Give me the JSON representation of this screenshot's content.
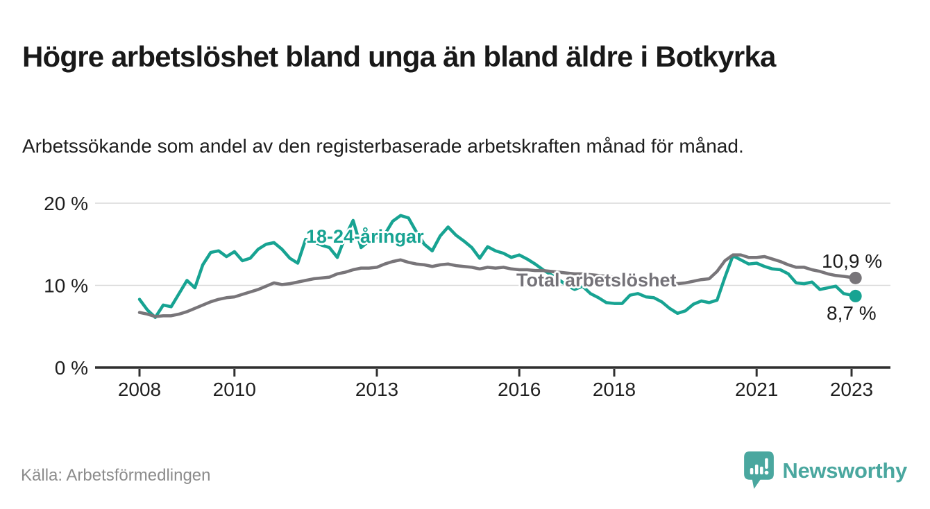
{
  "header": {
    "title": "Högre arbetslöshet bland unga än bland äldre i Botkyrka",
    "subtitle": "Arbetssökande som andel av den registerbaserade arbetskraften månad för månad."
  },
  "footer": {
    "source": "Källa: Arbetsförmedlingen",
    "logo_text": "Newsworthy"
  },
  "colors": {
    "youth": "#17a392",
    "total": "#787579",
    "gridline": "#d9d9d9",
    "axis": "#2f2f2f",
    "axis_text": "#1f1f1f",
    "logo_teal": "#4aa79f"
  },
  "chart_data": {
    "type": "line",
    "title": "Högre arbetslöshet bland unga än bland äldre i Botkyrka",
    "subtitle": "Arbetssökande som andel av den registerbaserade arbetskraften månad för månad.",
    "unit": "%",
    "grid": true,
    "legend_position": "inline-labels",
    "ylim": [
      0,
      20
    ],
    "xlim": [
      2007.0,
      2023.85
    ],
    "y_ticks": [
      {
        "label": "0 %",
        "value": 0
      },
      {
        "label": "10 %",
        "value": 10
      },
      {
        "label": "20 %",
        "value": 20
      }
    ],
    "x_ticks": [
      {
        "label": "2008",
        "value": 2008
      },
      {
        "label": "2010",
        "value": 2010
      },
      {
        "label": "2013",
        "value": 2013
      },
      {
        "label": "2016",
        "value": 2016
      },
      {
        "label": "2018",
        "value": 2018
      },
      {
        "label": "2021",
        "value": 2021
      },
      {
        "label": "2023",
        "value": 2023
      }
    ],
    "x": [
      2008,
      2008.167,
      2008.333,
      2008.5,
      2008.667,
      2008.833,
      2009,
      2009.167,
      2009.333,
      2009.5,
      2009.667,
      2009.833,
      2010,
      2010.167,
      2010.333,
      2010.5,
      2010.667,
      2010.833,
      2011,
      2011.167,
      2011.333,
      2011.5,
      2011.667,
      2011.833,
      2012,
      2012.167,
      2012.333,
      2012.5,
      2012.667,
      2012.833,
      2013,
      2013.167,
      2013.333,
      2013.5,
      2013.667,
      2013.833,
      2014,
      2014.167,
      2014.333,
      2014.5,
      2014.667,
      2014.833,
      2015,
      2015.167,
      2015.333,
      2015.5,
      2015.667,
      2015.833,
      2016,
      2016.167,
      2016.333,
      2016.5,
      2016.667,
      2016.833,
      2017,
      2017.167,
      2017.333,
      2017.5,
      2017.667,
      2017.833,
      2018,
      2018.167,
      2018.333,
      2018.5,
      2018.667,
      2018.833,
      2019,
      2019.167,
      2019.333,
      2019.5,
      2019.667,
      2019.833,
      2020,
      2020.167,
      2020.333,
      2020.5,
      2020.667,
      2020.833,
      2021,
      2021.167,
      2021.333,
      2021.5,
      2021.667,
      2021.833,
      2022,
      2022.167,
      2022.333,
      2022.5,
      2022.667,
      2022.833,
      2023.083
    ],
    "series": [
      {
        "id": "youth",
        "name": "18-24-åringar",
        "color": "#17a392",
        "end_label": "8,7 %",
        "end_value": 8.7,
        "values": [
          8.3,
          7.0,
          6.1,
          7.6,
          7.4,
          9.0,
          10.6,
          9.7,
          12.5,
          14.0,
          14.2,
          13.5,
          14.1,
          13.0,
          13.3,
          14.4,
          15.0,
          15.2,
          14.4,
          13.3,
          12.7,
          15.6,
          15.3,
          14.9,
          14.6,
          13.4,
          15.9,
          17.9,
          14.6,
          15.4,
          15.8,
          16.2,
          17.8,
          18.5,
          18.2,
          16.5,
          15.0,
          14.2,
          16.0,
          17.1,
          16.1,
          15.4,
          14.6,
          13.3,
          14.7,
          14.2,
          13.9,
          13.4,
          13.7,
          13.2,
          12.6,
          11.9,
          11.3,
          10.7,
          10.0,
          9.5,
          9.9,
          9.0,
          8.5,
          7.9,
          7.8,
          7.8,
          8.8,
          9.0,
          8.6,
          8.5,
          8.0,
          7.2,
          6.6,
          6.9,
          7.7,
          8.1,
          7.9,
          8.2,
          11.0,
          13.6,
          13.1,
          12.6,
          12.7,
          12.3,
          12.0,
          11.9,
          11.4,
          10.3,
          10.2,
          10.4,
          9.5,
          9.7,
          9.9,
          9.0,
          8.7
        ]
      },
      {
        "id": "total",
        "name": "Total arbetslöshet",
        "color": "#787579",
        "end_label": "10,9 %",
        "end_value": 10.9,
        "values": [
          6.7,
          6.5,
          6.2,
          6.3,
          6.3,
          6.5,
          6.8,
          7.2,
          7.6,
          8.0,
          8.3,
          8.5,
          8.6,
          8.9,
          9.2,
          9.5,
          9.9,
          10.3,
          10.1,
          10.2,
          10.4,
          10.6,
          10.8,
          10.9,
          11.0,
          11.4,
          11.6,
          11.9,
          12.1,
          12.1,
          12.2,
          12.6,
          12.9,
          13.1,
          12.8,
          12.6,
          12.5,
          12.3,
          12.5,
          12.6,
          12.4,
          12.3,
          12.2,
          12.0,
          12.2,
          12.1,
          12.2,
          12.0,
          11.9,
          11.9,
          11.8,
          11.8,
          11.7,
          11.6,
          11.5,
          11.4,
          11.4,
          11.3,
          11.2,
          11.1,
          11.0,
          10.9,
          10.9,
          10.8,
          10.7,
          10.6,
          10.4,
          10.3,
          10.2,
          10.3,
          10.5,
          10.7,
          10.8,
          11.7,
          13.0,
          13.7,
          13.7,
          13.4,
          13.4,
          13.5,
          13.2,
          12.9,
          12.5,
          12.2,
          12.2,
          11.9,
          11.7,
          11.4,
          11.2,
          11.1,
          10.9
        ]
      }
    ]
  }
}
